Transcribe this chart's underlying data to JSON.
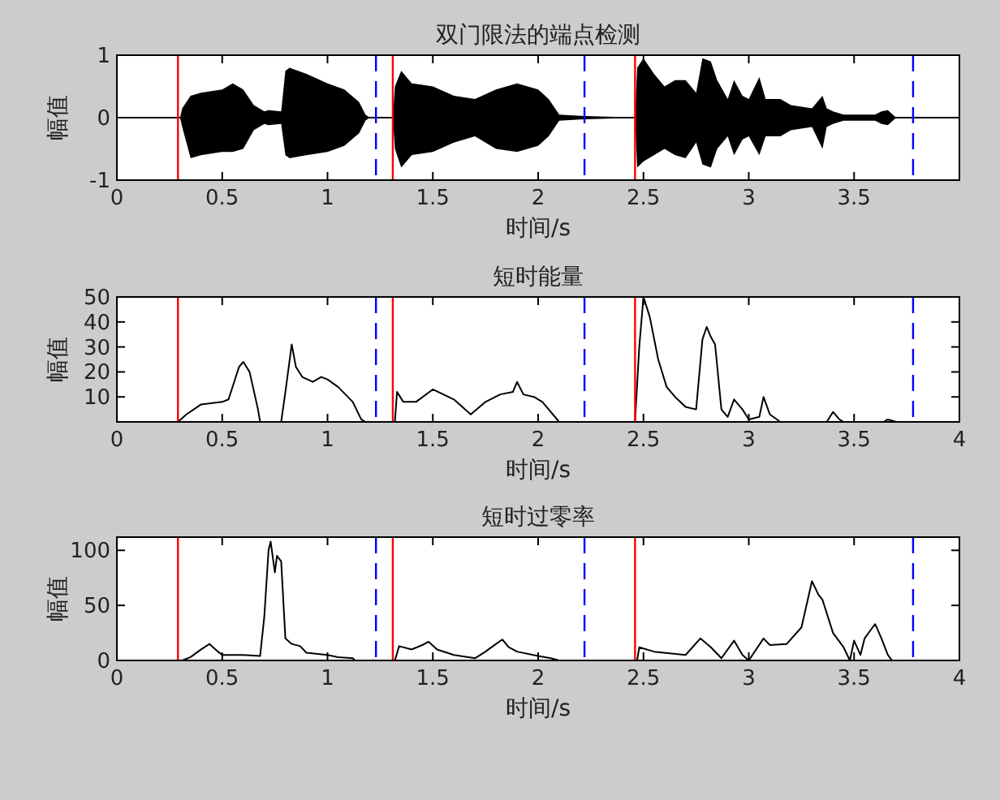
{
  "chart_data": [
    {
      "type": "line",
      "title": "双门限法的端点检测",
      "xlabel": "时间/s",
      "ylabel": "幅值",
      "xlim": [
        0,
        4
      ],
      "ylim": [
        -1,
        1
      ],
      "xticks": [
        0,
        0.5,
        1,
        1.5,
        2,
        2.5,
        3,
        3.5
      ],
      "yticks": [
        -1,
        0,
        1
      ],
      "grid": false,
      "series": [
        {
          "color": "#000000",
          "x": [
            0,
            0.3,
            0.31,
            0.35,
            0.4,
            0.5,
            0.55,
            0.6,
            0.65,
            0.7,
            0.72,
            0.78,
            0.8,
            0.82,
            0.9,
            1.0,
            1.08,
            1.15,
            1.18,
            1.2,
            1.31,
            1.32,
            1.35,
            1.4,
            1.5,
            1.6,
            1.7,
            1.8,
            1.9,
            1.95,
            2.0,
            2.05,
            2.1,
            2.2,
            2.46,
            2.47,
            2.5,
            2.55,
            2.6,
            2.65,
            2.7,
            2.75,
            2.78,
            2.82,
            2.85,
            2.9,
            2.93,
            2.97,
            3.0,
            3.05,
            3.08,
            3.15,
            3.2,
            3.3,
            3.35,
            3.37,
            3.4,
            3.45,
            3.55,
            3.6,
            3.63,
            3.66,
            3.7,
            4
          ],
          "values": [
            0,
            0,
            0,
            0,
            0,
            0,
            0,
            0,
            0,
            0,
            0,
            0,
            0,
            0,
            0,
            0,
            0,
            0,
            0,
            0,
            0,
            0,
            0,
            0,
            0,
            0,
            0,
            0,
            0,
            0,
            0,
            0,
            0,
            0,
            0,
            0,
            0,
            0,
            0,
            0,
            0,
            0,
            0,
            0,
            0,
            0,
            0,
            0,
            0,
            0,
            0,
            0,
            0,
            0,
            0,
            0,
            0,
            0,
            0,
            0,
            0,
            0,
            0,
            0
          ],
          "upper": [
            0,
            0,
            0.15,
            0.35,
            0.4,
            0.45,
            0.55,
            0.45,
            0.2,
            0.1,
            0.12,
            0.1,
            0.75,
            0.8,
            0.7,
            0.55,
            0.45,
            0.25,
            0.05,
            0,
            0,
            0.5,
            0.75,
            0.55,
            0.5,
            0.35,
            0.3,
            0.45,
            0.55,
            0.5,
            0.45,
            0.3,
            0.05,
            0.03,
            0,
            0.8,
            0.95,
            0.7,
            0.5,
            0.6,
            0.6,
            0.4,
            0.95,
            0.9,
            0.6,
            0.3,
            0.6,
            0.35,
            0.3,
            0.65,
            0.3,
            0.3,
            0.2,
            0.15,
            0.35,
            0.15,
            0.1,
            0.05,
            0.05,
            0.05,
            0.1,
            0.12,
            0,
            0
          ],
          "lower": [
            0,
            0,
            -0.15,
            -0.65,
            -0.6,
            -0.55,
            -0.55,
            -0.5,
            -0.2,
            -0.1,
            -0.12,
            -0.1,
            -0.6,
            -0.65,
            -0.6,
            -0.55,
            -0.45,
            -0.25,
            -0.05,
            0,
            0,
            -0.5,
            -0.8,
            -0.6,
            -0.55,
            -0.4,
            -0.3,
            -0.5,
            -0.55,
            -0.5,
            -0.45,
            -0.3,
            -0.05,
            -0.03,
            0,
            -0.8,
            -0.7,
            -0.6,
            -0.5,
            -0.6,
            -0.65,
            -0.4,
            -0.75,
            -0.8,
            -0.5,
            -0.3,
            -0.6,
            -0.35,
            -0.3,
            -0.6,
            -0.3,
            -0.3,
            -0.2,
            -0.15,
            -0.5,
            -0.15,
            -0.1,
            -0.05,
            -0.05,
            -0.05,
            -0.1,
            -0.12,
            0,
            0
          ]
        }
      ],
      "ref_lines": [
        {
          "axis": "x",
          "value": 0.29,
          "color": "#ff0000",
          "line_style": "solid"
        },
        {
          "axis": "x",
          "value": 1.31,
          "color": "#ff0000",
          "line_style": "solid"
        },
        {
          "axis": "x",
          "value": 2.46,
          "color": "#ff0000",
          "line_style": "solid"
        },
        {
          "axis": "x",
          "value": 1.23,
          "color": "#0000ff",
          "line_style": "dashed"
        },
        {
          "axis": "x",
          "value": 2.22,
          "color": "#0000ff",
          "line_style": "dashed"
        },
        {
          "axis": "x",
          "value": 3.78,
          "color": "#0000ff",
          "line_style": "dashed"
        }
      ]
    },
    {
      "type": "line",
      "title": "短时能量",
      "xlabel": "时间/s",
      "ylabel": "幅值",
      "xlim": [
        0,
        4
      ],
      "ylim": [
        0,
        50
      ],
      "xticks": [
        0,
        0.5,
        1,
        1.5,
        2,
        2.5,
        3,
        3.5,
        4
      ],
      "yticks": [
        10,
        20,
        30,
        40,
        50
      ],
      "grid": false,
      "series": [
        {
          "color": "#000000",
          "x": [
            0,
            0.29,
            0.33,
            0.4,
            0.5,
            0.53,
            0.58,
            0.6,
            0.63,
            0.67,
            0.68,
            0.78,
            0.8,
            0.83,
            0.85,
            0.88,
            0.93,
            0.97,
            1.0,
            1.05,
            1.12,
            1.16,
            1.18,
            1.32,
            1.33,
            1.36,
            1.42,
            1.5,
            1.55,
            1.6,
            1.68,
            1.75,
            1.82,
            1.88,
            1.9,
            1.93,
            1.98,
            2.02,
            2.07,
            2.1,
            2.46,
            2.48,
            2.5,
            2.53,
            2.57,
            2.61,
            2.65,
            2.7,
            2.75,
            2.78,
            2.8,
            2.82,
            2.84,
            2.87,
            2.9,
            2.93,
            2.97,
            3.0,
            3.05,
            3.07,
            3.1,
            3.15,
            3.37,
            3.4,
            3.43,
            3.45,
            3.64,
            3.66,
            3.7,
            4
          ],
          "values": [
            0,
            0,
            3,
            7,
            8,
            9,
            22,
            24,
            20,
            5,
            0,
            0,
            12,
            31,
            22,
            18,
            16,
            18,
            17,
            14,
            8,
            1,
            0,
            0,
            12,
            8,
            8,
            13,
            11,
            9,
            3,
            8,
            11,
            12,
            16,
            11,
            10,
            8,
            3,
            0,
            0,
            30,
            50,
            42,
            25,
            14,
            10,
            6,
            5,
            33,
            38,
            34,
            31,
            5,
            2,
            9,
            5,
            1,
            2,
            10,
            3,
            0,
            0,
            4,
            1,
            0,
            0,
            1,
            0,
            0
          ]
        }
      ],
      "ref_lines": [
        {
          "axis": "x",
          "value": 0.29,
          "color": "#ff0000",
          "line_style": "solid"
        },
        {
          "axis": "x",
          "value": 1.31,
          "color": "#ff0000",
          "line_style": "solid"
        },
        {
          "axis": "x",
          "value": 2.46,
          "color": "#ff0000",
          "line_style": "solid"
        },
        {
          "axis": "x",
          "value": 1.23,
          "color": "#0000ff",
          "line_style": "dashed"
        },
        {
          "axis": "x",
          "value": 2.22,
          "color": "#0000ff",
          "line_style": "dashed"
        },
        {
          "axis": "x",
          "value": 3.78,
          "color": "#0000ff",
          "line_style": "dashed"
        }
      ]
    },
    {
      "type": "line",
      "title": "短时过零率",
      "xlabel": "时间/s",
      "ylabel": "幅值",
      "xlim": [
        0,
        4
      ],
      "ylim": [
        0,
        112
      ],
      "xticks": [
        0,
        0.5,
        1,
        1.5,
        2,
        2.5,
        3,
        3.5,
        4
      ],
      "yticks": [
        0,
        50,
        100
      ],
      "grid": false,
      "series": [
        {
          "color": "#000000",
          "x": [
            0.31,
            0.35,
            0.4,
            0.44,
            0.48,
            0.5,
            0.6,
            0.68,
            0.7,
            0.72,
            0.73,
            0.75,
            0.76,
            0.78,
            0.8,
            0.83,
            0.87,
            0.9,
            1.0,
            1.05,
            1.12,
            1.13,
            1.32,
            1.34,
            1.4,
            1.45,
            1.48,
            1.52,
            1.6,
            1.7,
            1.75,
            1.8,
            1.83,
            1.86,
            1.9,
            2.0,
            2.06,
            2.1,
            2.47,
            2.48,
            2.55,
            2.7,
            2.77,
            2.82,
            2.87,
            2.93,
            2.97,
            3.0,
            3.07,
            3.1,
            3.18,
            3.25,
            3.3,
            3.33,
            3.35,
            3.4,
            3.45,
            3.48,
            3.5,
            3.53,
            3.55,
            3.58,
            3.6,
            3.63,
            3.66,
            3.68
          ],
          "values": [
            0,
            3,
            10,
            15,
            8,
            5,
            5,
            4,
            40,
            100,
            108,
            80,
            95,
            90,
            20,
            15,
            13,
            7,
            5,
            3,
            2,
            0,
            0,
            13,
            10,
            14,
            17,
            10,
            5,
            2,
            8,
            15,
            19,
            12,
            8,
            4,
            2,
            0,
            0,
            12,
            8,
            5,
            20,
            12,
            2,
            18,
            5,
            0,
            20,
            14,
            15,
            30,
            72,
            60,
            55,
            25,
            12,
            0,
            18,
            5,
            20,
            28,
            33,
            20,
            5,
            0
          ]
        }
      ],
      "ref_lines": [
        {
          "axis": "x",
          "value": 0.29,
          "color": "#ff0000",
          "line_style": "solid"
        },
        {
          "axis": "x",
          "value": 1.31,
          "color": "#ff0000",
          "line_style": "solid"
        },
        {
          "axis": "x",
          "value": 2.46,
          "color": "#ff0000",
          "line_style": "solid"
        },
        {
          "axis": "x",
          "value": 1.23,
          "color": "#0000ff",
          "line_style": "dashed"
        },
        {
          "axis": "x",
          "value": 2.22,
          "color": "#0000ff",
          "line_style": "dashed"
        },
        {
          "axis": "x",
          "value": 3.78,
          "color": "#0000ff",
          "line_style": "dashed"
        }
      ]
    }
  ]
}
